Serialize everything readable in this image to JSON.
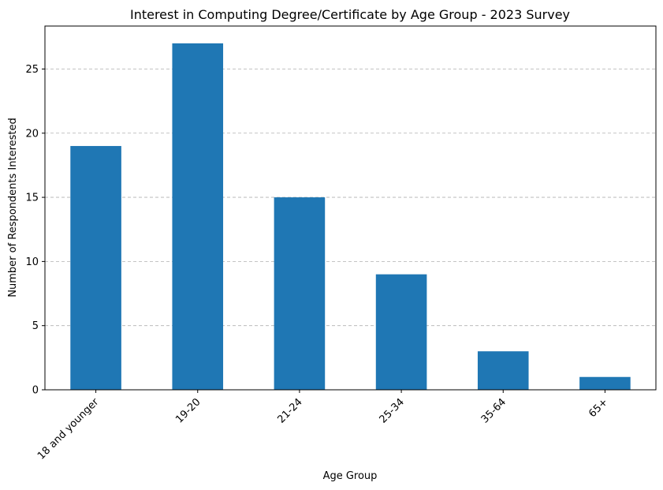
{
  "chart_data": {
    "type": "bar",
    "title": "Interest in Computing Degree/Certificate by Age Group - 2023 Survey",
    "xlabel": "Age Group",
    "ylabel": "Number of Respondents Interested",
    "categories": [
      "18 and younger",
      "19-20",
      "21-24",
      "25-34",
      "35-64",
      "65+"
    ],
    "values": [
      19,
      27,
      15,
      9,
      3,
      1
    ],
    "ylim": [
      0,
      28.35
    ],
    "yticks": [
      0,
      5,
      10,
      15,
      20,
      25
    ],
    "grid": "horizontal-dashed",
    "bar_color": "#1f77b4"
  }
}
